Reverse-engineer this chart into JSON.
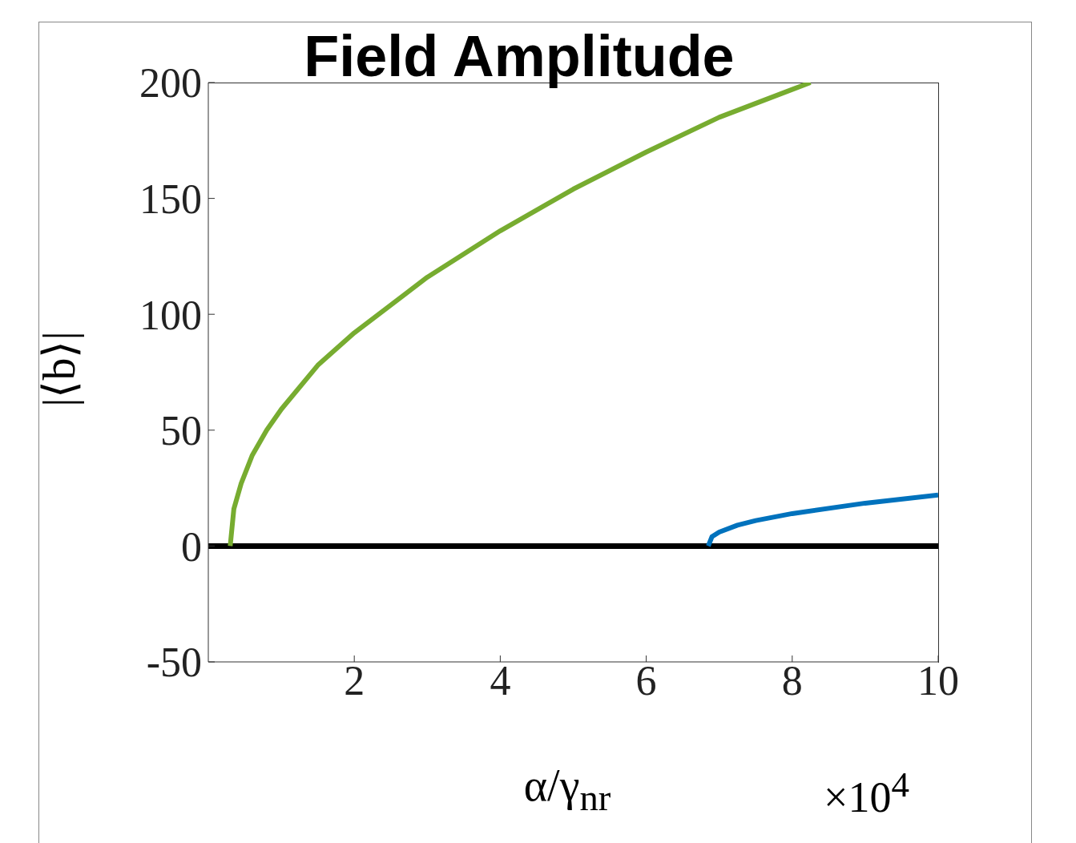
{
  "chart_data": {
    "type": "line",
    "title": "Field Amplitude",
    "xlabel": "α/γ$_{nr}$",
    "ylabel": "|⟨b⟩|",
    "xlim": [
      0,
      10
    ],
    "xticks": [
      2,
      4,
      6,
      8,
      10
    ],
    "ylim": [
      -50,
      200
    ],
    "yticks": [
      -50,
      0,
      50,
      100,
      150,
      200
    ],
    "annotations": [
      "×10$^{4}$"
    ],
    "series": [
      {
        "color": "#000000",
        "x": [
          0,
          10
        ],
        "values": [
          0,
          0
        ]
      },
      {
        "color": "#77ac30",
        "x": [
          0.3,
          0.35,
          0.45,
          0.6,
          0.8,
          1.0,
          1.5,
          2,
          3,
          4,
          5,
          6,
          7,
          8,
          8.25
        ],
        "values": [
          0,
          16,
          27,
          39,
          50,
          59,
          78,
          92,
          116,
          136,
          154,
          170,
          185,
          197,
          200
        ]
      },
      {
        "color": "#0072bd",
        "x": [
          6.85,
          6.9,
          7.0,
          7.25,
          7.5,
          8,
          9,
          10
        ],
        "values": [
          0,
          4,
          6,
          9,
          11,
          14,
          18.5,
          22
        ]
      }
    ]
  }
}
